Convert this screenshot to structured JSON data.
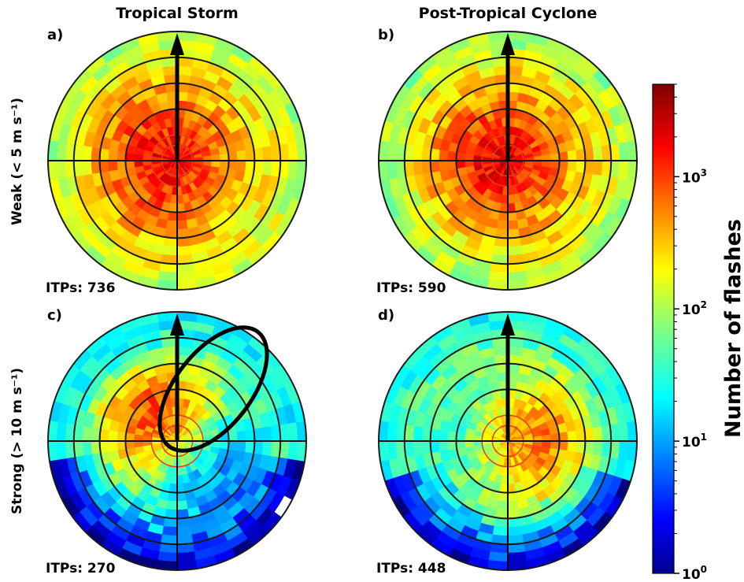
{
  "chart_data": {
    "type": "heatmap",
    "projection": "polar",
    "column_titles": [
      "Tropical Storm",
      "Post-Tropical Cyclone"
    ],
    "row_titles": [
      "Weak (< 5 m s⁻¹)",
      "Strong (> 10 m s⁻¹)"
    ],
    "colorbar": {
      "label": "Number of flashes",
      "scale": "log",
      "range": [
        1,
        5000
      ],
      "ticks": [
        {
          "base": "10",
          "exp": "0"
        },
        {
          "base": "10",
          "exp": "1"
        },
        {
          "base": "10",
          "exp": "2"
        },
        {
          "base": "10",
          "exp": "3"
        }
      ],
      "colormap": "jet"
    },
    "panels": [
      {
        "label": "a)",
        "itps": "ITPs: 736",
        "hot_center_log": 3.3,
        "hot_dir_deg": 90,
        "hot_dir_strength": 0.15,
        "edge_log": 2.0,
        "low_sectors": [],
        "ellipse": false
      },
      {
        "label": "b)",
        "itps": "ITPs: 590",
        "hot_center_log": 3.4,
        "hot_dir_deg": 90,
        "hot_dir_strength": 0.1,
        "edge_log": 1.9,
        "low_sectors": [],
        "ellipse": false
      },
      {
        "label": "c)",
        "itps": "ITPs: 270",
        "hot_center_log": 2.4,
        "hot_dir_deg": 45,
        "hot_dir_strength": 0.9,
        "edge_log": 1.3,
        "low_sectors": [
          [
            100,
            260,
            0.3
          ]
        ],
        "ellipse": true
      },
      {
        "label": "d)",
        "itps": "ITPs: 448",
        "hot_center_log": 2.6,
        "hot_dir_deg": 270,
        "hot_dir_strength": 0.5,
        "edge_log": 1.4,
        "low_sectors": [
          [
            110,
            250,
            0.3
          ]
        ],
        "ellipse": false
      }
    ]
  }
}
